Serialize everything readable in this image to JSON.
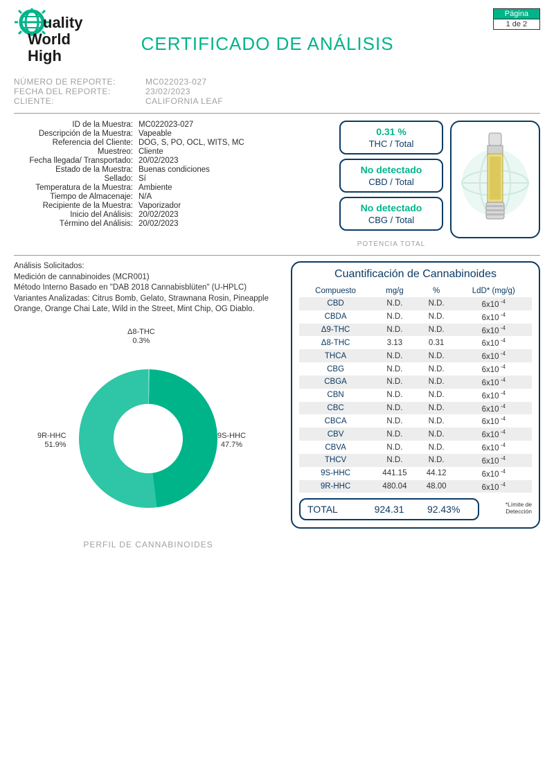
{
  "page_indicator": {
    "label": "Página",
    "value": "1 de 2",
    "accent_color": "#00b48a"
  },
  "branding": {
    "company_name_line1": "uality",
    "company_name_line2": "World",
    "company_name_line3": "High",
    "globe_color": "#00b48a",
    "text_color": "#1a1a1a"
  },
  "title": "CERTIFICADO DE ANÁLISIS",
  "title_color": "#00b48a",
  "report_meta": [
    {
      "label": "NÚMERO DE REPORTE:",
      "value": "MC022023-027"
    },
    {
      "label": "FECHA DEL REPORTE:",
      "value": "23/02/2023"
    },
    {
      "label": "CLIENTE:",
      "value": "CALIFORNIA LEAF"
    }
  ],
  "sample_details": [
    {
      "label": "ID de la Muestra:",
      "value": "MC022023-027"
    },
    {
      "label": "Descripción de la Muestra:",
      "value": "Vapeable"
    },
    {
      "label": "Referencia del Cliente:",
      "value": "DOG, S, PO, OCL, WITS, MC"
    },
    {
      "label": "Muestreo:",
      "value": "Cliente"
    },
    {
      "label": "Fecha llegada/ Transportado:",
      "value": "20/02/2023"
    },
    {
      "label": "Estado de la Muestra:",
      "value": "Buenas condiciones"
    },
    {
      "label": "Sellado:",
      "value": "Sí"
    },
    {
      "label": "Temperatura de la Muestra:",
      "value": "Ambiente"
    },
    {
      "label": "Tiempo de Almacenaje:",
      "value": "N/A"
    },
    {
      "label": "Recipiente de la Muestra:",
      "value": "Vaporizador"
    },
    {
      "label": "Inicio del Análisis:",
      "value": "20/02/2023"
    },
    {
      "label": "Término del Análisis:",
      "value": "20/02/2023"
    }
  ],
  "potency": {
    "caption": "POTENCIA TOTAL",
    "boxes": [
      {
        "value": "0.31 %",
        "label": "THC / Total"
      },
      {
        "value": "No detectado",
        "label": "CBD / Total"
      },
      {
        "value": "No detectado",
        "label": "CBG / Total"
      }
    ],
    "border_color": "#0b3a64",
    "value_color": "#00b48a"
  },
  "analysis_requested": {
    "heading": "Análisis Solicitados:",
    "line1": "Medición de cannabinoides (MCR001)",
    "line2": "Método Interno Basado en \"DAB 2018 Cannabisblüten\" (U-HPLC)",
    "line3": "Variantes Analizadas: Citrus Bomb, Gelato, Strawnana Rosin, Pineapple Orange, Orange Chai Late, Wild in the Street, Mint Chip, OG Diablo."
  },
  "donut_chart": {
    "type": "pie",
    "caption": "PERFIL DE CANNABINOIDES",
    "inner_radius_pct": 50,
    "background_color": "#ffffff",
    "slices": [
      {
        "name": "Δ8-THC",
        "pct": 0.3,
        "color": "#6fe0cf",
        "label": "Δ8-THC",
        "label_pct": "0.3%"
      },
      {
        "name": "9S-HHC",
        "pct": 47.7,
        "color": "#00b48a",
        "label": "9S-HHC",
        "label_pct": "47.7%"
      },
      {
        "name": "9R-HHC",
        "pct": 51.9,
        "color": "#2ec6a6",
        "label": "9R-HHC",
        "label_pct": "51.9%"
      }
    ],
    "label_fontsize": 11,
    "label_color": "#333333"
  },
  "quant_table": {
    "title": "Cuantificación de Cannabinoides",
    "title_color": "#0b3a64",
    "border_color": "#0b3a64",
    "stripe_color": "#ededed",
    "columns": [
      "Compuesto",
      "mg/g",
      "%",
      "LdD* (mg/g)"
    ],
    "ldd_display": "6x10⁻⁴",
    "rows": [
      {
        "compound": "CBD",
        "mg_g": "N.D.",
        "pct": "N.D."
      },
      {
        "compound": "CBDA",
        "mg_g": "N.D.",
        "pct": "N.D."
      },
      {
        "compound": "Δ9-THC",
        "mg_g": "N.D.",
        "pct": "N.D."
      },
      {
        "compound": "Δ8-THC",
        "mg_g": "3.13",
        "pct": "0.31"
      },
      {
        "compound": "THCA",
        "mg_g": "N.D.",
        "pct": "N.D."
      },
      {
        "compound": "CBG",
        "mg_g": "N.D.",
        "pct": "N.D."
      },
      {
        "compound": "CBGA",
        "mg_g": "N.D.",
        "pct": "N.D."
      },
      {
        "compound": "CBN",
        "mg_g": "N.D.",
        "pct": "N.D."
      },
      {
        "compound": "CBC",
        "mg_g": "N.D.",
        "pct": "N.D."
      },
      {
        "compound": "CBCA",
        "mg_g": "N.D.",
        "pct": "N.D."
      },
      {
        "compound": "CBV",
        "mg_g": "N.D.",
        "pct": "N.D."
      },
      {
        "compound": "CBVA",
        "mg_g": "N.D.",
        "pct": "N.D."
      },
      {
        "compound": "THCV",
        "mg_g": "N.D.",
        "pct": "N.D."
      },
      {
        "compound": "9S-HHC",
        "mg_g": "441.15",
        "pct": "44.12"
      },
      {
        "compound": "9R-HHC",
        "mg_g": "480.04",
        "pct": "48.00"
      }
    ],
    "total": {
      "label": "TOTAL",
      "mg_g": "924.31",
      "pct": "92.43%"
    },
    "ldd_note": "*Límite de Detección"
  },
  "product_image": {
    "description": "vape cartridge",
    "body_color": "#d9c96a",
    "tip_color": "#d0d0d0",
    "globe_bg_color": "#c8ede3"
  }
}
